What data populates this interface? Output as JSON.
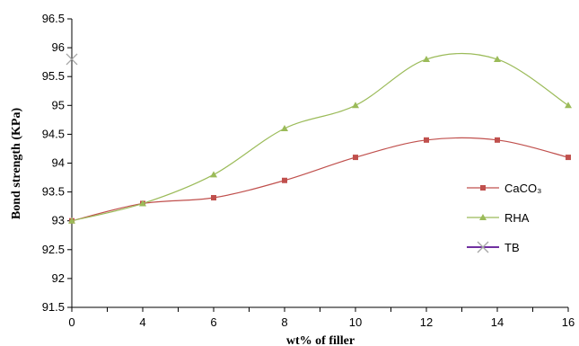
{
  "chart_data": {
    "type": "line",
    "title": "",
    "xlabel": "wt% of filler",
    "ylabel": "Bond strength (KPa)",
    "x_ticks": [
      "0",
      "4",
      "6",
      "8",
      "10",
      "12",
      "14",
      "16"
    ],
    "ylim": [
      91.5,
      96.5
    ],
    "y_ticks": [
      "91.5",
      "92",
      "92.5",
      "93",
      "93.5",
      "94",
      "94.5",
      "95",
      "95.5",
      "96",
      "96.5"
    ],
    "grid": false,
    "legend_position": "right",
    "series": [
      {
        "name": "CaCO₃",
        "marker": "square",
        "color": "#c0504d",
        "x": [
          "0",
          "4",
          "6",
          "8",
          "10",
          "12",
          "14",
          "16"
        ],
        "values": [
          93.0,
          93.3,
          93.4,
          93.7,
          94.1,
          94.4,
          94.4,
          94.1
        ]
      },
      {
        "name": "RHA",
        "marker": "triangle",
        "color": "#9bbb59",
        "x": [
          "0",
          "4",
          "6",
          "8",
          "10",
          "12",
          "14",
          "16"
        ],
        "values": [
          93.0,
          93.3,
          93.8,
          94.6,
          95.0,
          95.8,
          95.8,
          95.0
        ]
      },
      {
        "name": "TB",
        "marker": "x",
        "color": "#8064a2",
        "x": [
          "0"
        ],
        "values": [
          95.8
        ]
      }
    ]
  }
}
